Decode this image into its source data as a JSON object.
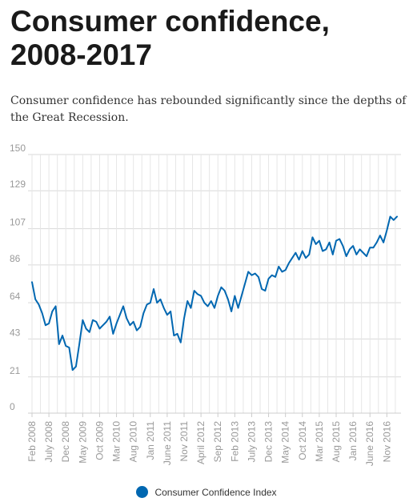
{
  "header": {
    "title": "Consumer confidence, 2008-2017",
    "subtitle": "Consumer confidence has rebounded significantly since the depths of the Great Recession."
  },
  "chart_data": {
    "type": "line",
    "title": "",
    "xlabel": "",
    "ylabel": "",
    "ylim": [
      0,
      150
    ],
    "yticks": [
      0,
      21,
      43,
      64,
      86,
      107,
      129,
      150
    ],
    "grid": true,
    "legend_position": "bottom",
    "line_color": "#0067b1",
    "xtick_labels": [
      {
        "label": "Feb 2008",
        "index": 0
      },
      {
        "label": "July 2008",
        "index": 5
      },
      {
        "label": "Dec 2008",
        "index": 10
      },
      {
        "label": "May 2009",
        "index": 15
      },
      {
        "label": "Oct 2009",
        "index": 20
      },
      {
        "label": "Mar 2010",
        "index": 25
      },
      {
        "label": "Aug 2010",
        "index": 30
      },
      {
        "label": "Jan 2011",
        "index": 35
      },
      {
        "label": "June 2011",
        "index": 40
      },
      {
        "label": "Nov 2011",
        "index": 45
      },
      {
        "label": "April 2012",
        "index": 50
      },
      {
        "label": "Sep 2012",
        "index": 55
      },
      {
        "label": "Feb 2013",
        "index": 60
      },
      {
        "label": "July 2013",
        "index": 65
      },
      {
        "label": "Dec 2013",
        "index": 70
      },
      {
        "label": "May 2014",
        "index": 75
      },
      {
        "label": "Oct 2014",
        "index": 80
      },
      {
        "label": "Mar 2015",
        "index": 85
      },
      {
        "label": "Aug 2015",
        "index": 90
      },
      {
        "label": "Jan 2016",
        "index": 95
      },
      {
        "label": "June 2016",
        "index": 100
      },
      {
        "label": "Nov 2016",
        "index": 105
      }
    ],
    "series": [
      {
        "name": "Consumer Confidence Index",
        "values": [
          76,
          66,
          63,
          58,
          51,
          52,
          59,
          62,
          40,
          45,
          39,
          38,
          25,
          27,
          40,
          54,
          49,
          47,
          54,
          53,
          49,
          51,
          53,
          56,
          46,
          52,
          57,
          62,
          55,
          51,
          53,
          48,
          50,
          58,
          63,
          64,
          72,
          64,
          66,
          61,
          57,
          59,
          45,
          46,
          41,
          55,
          65,
          61,
          71,
          69,
          68,
          64,
          62,
          65,
          61,
          68,
          73,
          71,
          66,
          59,
          68,
          61,
          68,
          75,
          82,
          80,
          81,
          79,
          72,
          71,
          78,
          80,
          79,
          85,
          82,
          83,
          87,
          90,
          93,
          89,
          94,
          90,
          92,
          102,
          98,
          100,
          94,
          95,
          99,
          92,
          100,
          101,
          97,
          91,
          95,
          97,
          92,
          95,
          93,
          91,
          96,
          96,
          99,
          103,
          99,
          106,
          114,
          112,
          114
        ]
      }
    ]
  }
}
